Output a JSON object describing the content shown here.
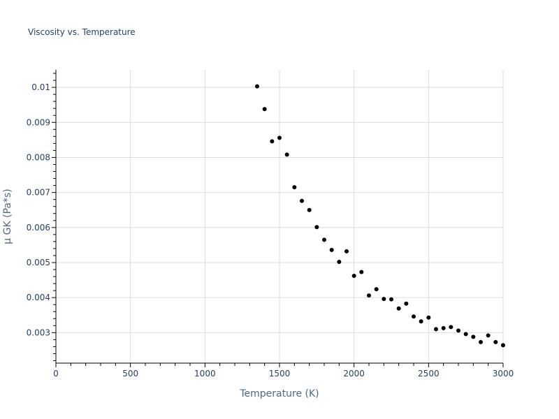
{
  "chart_data": {
    "type": "scatter",
    "title": "Viscosity vs. Temperature",
    "xlabel": "Temperature (K)",
    "ylabel": "μ GK (Pa*s)",
    "xlim": [
      0,
      3000
    ],
    "ylim": [
      0.00213,
      0.0105
    ],
    "x_ticks": [
      0,
      500,
      1000,
      1500,
      2000,
      2500,
      3000
    ],
    "x_tick_labels": [
      "0",
      "500",
      "1000",
      "1500",
      "2000",
      "2500",
      "3000"
    ],
    "y_ticks": [
      0.003,
      0.004,
      0.005,
      0.006,
      0.007,
      0.008,
      0.009,
      0.01
    ],
    "y_tick_labels": [
      "0.003",
      "0.004",
      "0.005",
      "0.006",
      "0.007",
      "0.008",
      "0.009",
      "0.01"
    ],
    "grid": true,
    "marker_color": "#000000",
    "series": [
      {
        "x": [
          1350,
          1400,
          1450,
          1500,
          1550,
          1600,
          1650,
          1700,
          1750,
          1800,
          1850,
          1900,
          1950,
          2000,
          2050,
          2100,
          2150,
          2200,
          2250,
          2300,
          2350,
          2400,
          2450,
          2500,
          2550,
          2600,
          2650,
          2700,
          2750,
          2800,
          2850,
          2900,
          2950,
          3000
        ],
        "y": [
          0.01003,
          0.00938,
          0.00846,
          0.00856,
          0.00808,
          0.00715,
          0.00676,
          0.0065,
          0.00601,
          0.00565,
          0.00536,
          0.00502,
          0.00532,
          0.00462,
          0.00473,
          0.00406,
          0.00424,
          0.00396,
          0.00395,
          0.00369,
          0.00383,
          0.00346,
          0.00332,
          0.00343,
          0.0031,
          0.00313,
          0.00316,
          0.00306,
          0.00296,
          0.00288,
          0.00273,
          0.00292,
          0.00273,
          0.00264
        ]
      }
    ]
  }
}
